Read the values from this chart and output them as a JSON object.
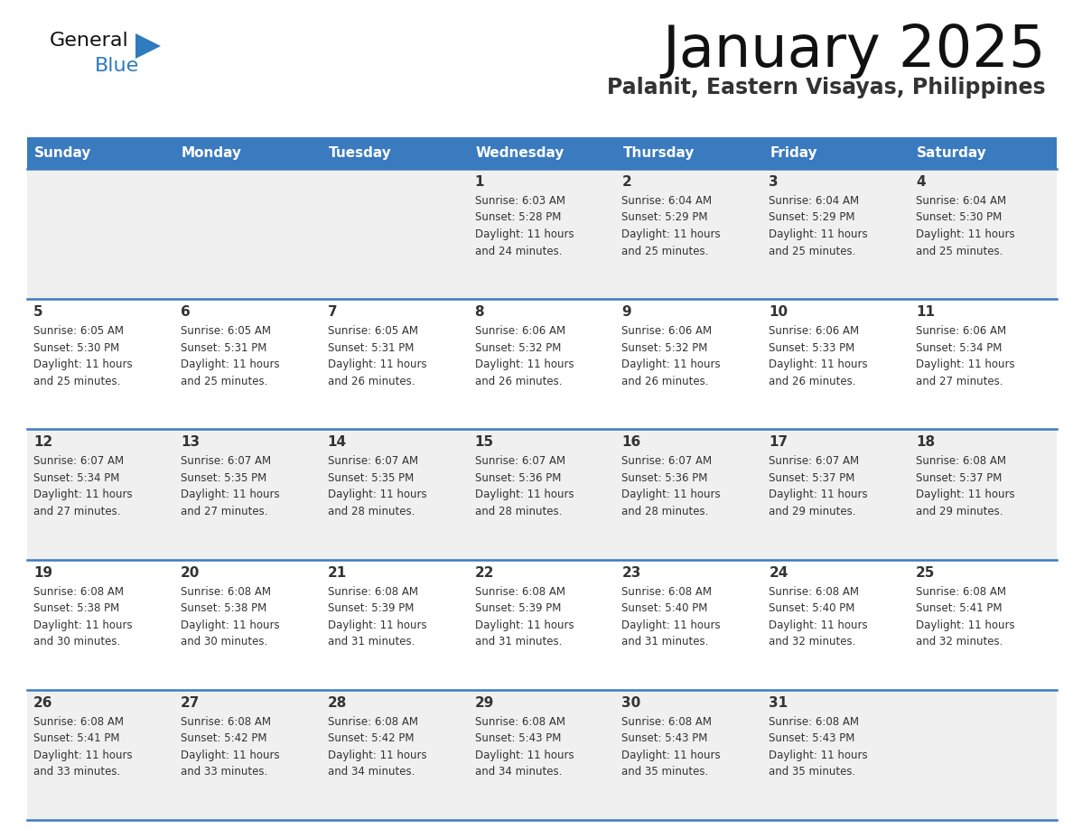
{
  "title": "January 2025",
  "subtitle": "Palanit, Eastern Visayas, Philippines",
  "days_of_week": [
    "Sunday",
    "Monday",
    "Tuesday",
    "Wednesday",
    "Thursday",
    "Friday",
    "Saturday"
  ],
  "header_bg": "#3a7abf",
  "header_text": "#ffffff",
  "row_bg_odd": "#f0f0f0",
  "row_bg_even": "#ffffff",
  "separator_color": "#3a7abf",
  "day_num_color": "#333333",
  "cell_text_color": "#333333",
  "title_color": "#111111",
  "subtitle_color": "#333333",
  "calendar": [
    [
      null,
      null,
      null,
      {
        "day": 1,
        "sunrise": "6:03 AM",
        "sunset": "5:28 PM",
        "daylight_h": "11 hours",
        "daylight_m": "and 24 minutes."
      },
      {
        "day": 2,
        "sunrise": "6:04 AM",
        "sunset": "5:29 PM",
        "daylight_h": "11 hours",
        "daylight_m": "and 25 minutes."
      },
      {
        "day": 3,
        "sunrise": "6:04 AM",
        "sunset": "5:29 PM",
        "daylight_h": "11 hours",
        "daylight_m": "and 25 minutes."
      },
      {
        "day": 4,
        "sunrise": "6:04 AM",
        "sunset": "5:30 PM",
        "daylight_h": "11 hours",
        "daylight_m": "and 25 minutes."
      }
    ],
    [
      {
        "day": 5,
        "sunrise": "6:05 AM",
        "sunset": "5:30 PM",
        "daylight_h": "11 hours",
        "daylight_m": "and 25 minutes."
      },
      {
        "day": 6,
        "sunrise": "6:05 AM",
        "sunset": "5:31 PM",
        "daylight_h": "11 hours",
        "daylight_m": "and 25 minutes."
      },
      {
        "day": 7,
        "sunrise": "6:05 AM",
        "sunset": "5:31 PM",
        "daylight_h": "11 hours",
        "daylight_m": "and 26 minutes."
      },
      {
        "day": 8,
        "sunrise": "6:06 AM",
        "sunset": "5:32 PM",
        "daylight_h": "11 hours",
        "daylight_m": "and 26 minutes."
      },
      {
        "day": 9,
        "sunrise": "6:06 AM",
        "sunset": "5:32 PM",
        "daylight_h": "11 hours",
        "daylight_m": "and 26 minutes."
      },
      {
        "day": 10,
        "sunrise": "6:06 AM",
        "sunset": "5:33 PM",
        "daylight_h": "11 hours",
        "daylight_m": "and 26 minutes."
      },
      {
        "day": 11,
        "sunrise": "6:06 AM",
        "sunset": "5:34 PM",
        "daylight_h": "11 hours",
        "daylight_m": "and 27 minutes."
      }
    ],
    [
      {
        "day": 12,
        "sunrise": "6:07 AM",
        "sunset": "5:34 PM",
        "daylight_h": "11 hours",
        "daylight_m": "and 27 minutes."
      },
      {
        "day": 13,
        "sunrise": "6:07 AM",
        "sunset": "5:35 PM",
        "daylight_h": "11 hours",
        "daylight_m": "and 27 minutes."
      },
      {
        "day": 14,
        "sunrise": "6:07 AM",
        "sunset": "5:35 PM",
        "daylight_h": "11 hours",
        "daylight_m": "and 28 minutes."
      },
      {
        "day": 15,
        "sunrise": "6:07 AM",
        "sunset": "5:36 PM",
        "daylight_h": "11 hours",
        "daylight_m": "and 28 minutes."
      },
      {
        "day": 16,
        "sunrise": "6:07 AM",
        "sunset": "5:36 PM",
        "daylight_h": "11 hours",
        "daylight_m": "and 28 minutes."
      },
      {
        "day": 17,
        "sunrise": "6:07 AM",
        "sunset": "5:37 PM",
        "daylight_h": "11 hours",
        "daylight_m": "and 29 minutes."
      },
      {
        "day": 18,
        "sunrise": "6:08 AM",
        "sunset": "5:37 PM",
        "daylight_h": "11 hours",
        "daylight_m": "and 29 minutes."
      }
    ],
    [
      {
        "day": 19,
        "sunrise": "6:08 AM",
        "sunset": "5:38 PM",
        "daylight_h": "11 hours",
        "daylight_m": "and 30 minutes."
      },
      {
        "day": 20,
        "sunrise": "6:08 AM",
        "sunset": "5:38 PM",
        "daylight_h": "11 hours",
        "daylight_m": "and 30 minutes."
      },
      {
        "day": 21,
        "sunrise": "6:08 AM",
        "sunset": "5:39 PM",
        "daylight_h": "11 hours",
        "daylight_m": "and 31 minutes."
      },
      {
        "day": 22,
        "sunrise": "6:08 AM",
        "sunset": "5:39 PM",
        "daylight_h": "11 hours",
        "daylight_m": "and 31 minutes."
      },
      {
        "day": 23,
        "sunrise": "6:08 AM",
        "sunset": "5:40 PM",
        "daylight_h": "11 hours",
        "daylight_m": "and 31 minutes."
      },
      {
        "day": 24,
        "sunrise": "6:08 AM",
        "sunset": "5:40 PM",
        "daylight_h": "11 hours",
        "daylight_m": "and 32 minutes."
      },
      {
        "day": 25,
        "sunrise": "6:08 AM",
        "sunset": "5:41 PM",
        "daylight_h": "11 hours",
        "daylight_m": "and 32 minutes."
      }
    ],
    [
      {
        "day": 26,
        "sunrise": "6:08 AM",
        "sunset": "5:41 PM",
        "daylight_h": "11 hours",
        "daylight_m": "and 33 minutes."
      },
      {
        "day": 27,
        "sunrise": "6:08 AM",
        "sunset": "5:42 PM",
        "daylight_h": "11 hours",
        "daylight_m": "and 33 minutes."
      },
      {
        "day": 28,
        "sunrise": "6:08 AM",
        "sunset": "5:42 PM",
        "daylight_h": "11 hours",
        "daylight_m": "and 34 minutes."
      },
      {
        "day": 29,
        "sunrise": "6:08 AM",
        "sunset": "5:43 PM",
        "daylight_h": "11 hours",
        "daylight_m": "and 34 minutes."
      },
      {
        "day": 30,
        "sunrise": "6:08 AM",
        "sunset": "5:43 PM",
        "daylight_h": "11 hours",
        "daylight_m": "and 35 minutes."
      },
      {
        "day": 31,
        "sunrise": "6:08 AM",
        "sunset": "5:43 PM",
        "daylight_h": "11 hours",
        "daylight_m": "and 35 minutes."
      },
      null
    ]
  ],
  "logo_general_color": "#111111",
  "logo_blue_color": "#2e7bbf",
  "logo_triangle_color": "#2e7bbf"
}
